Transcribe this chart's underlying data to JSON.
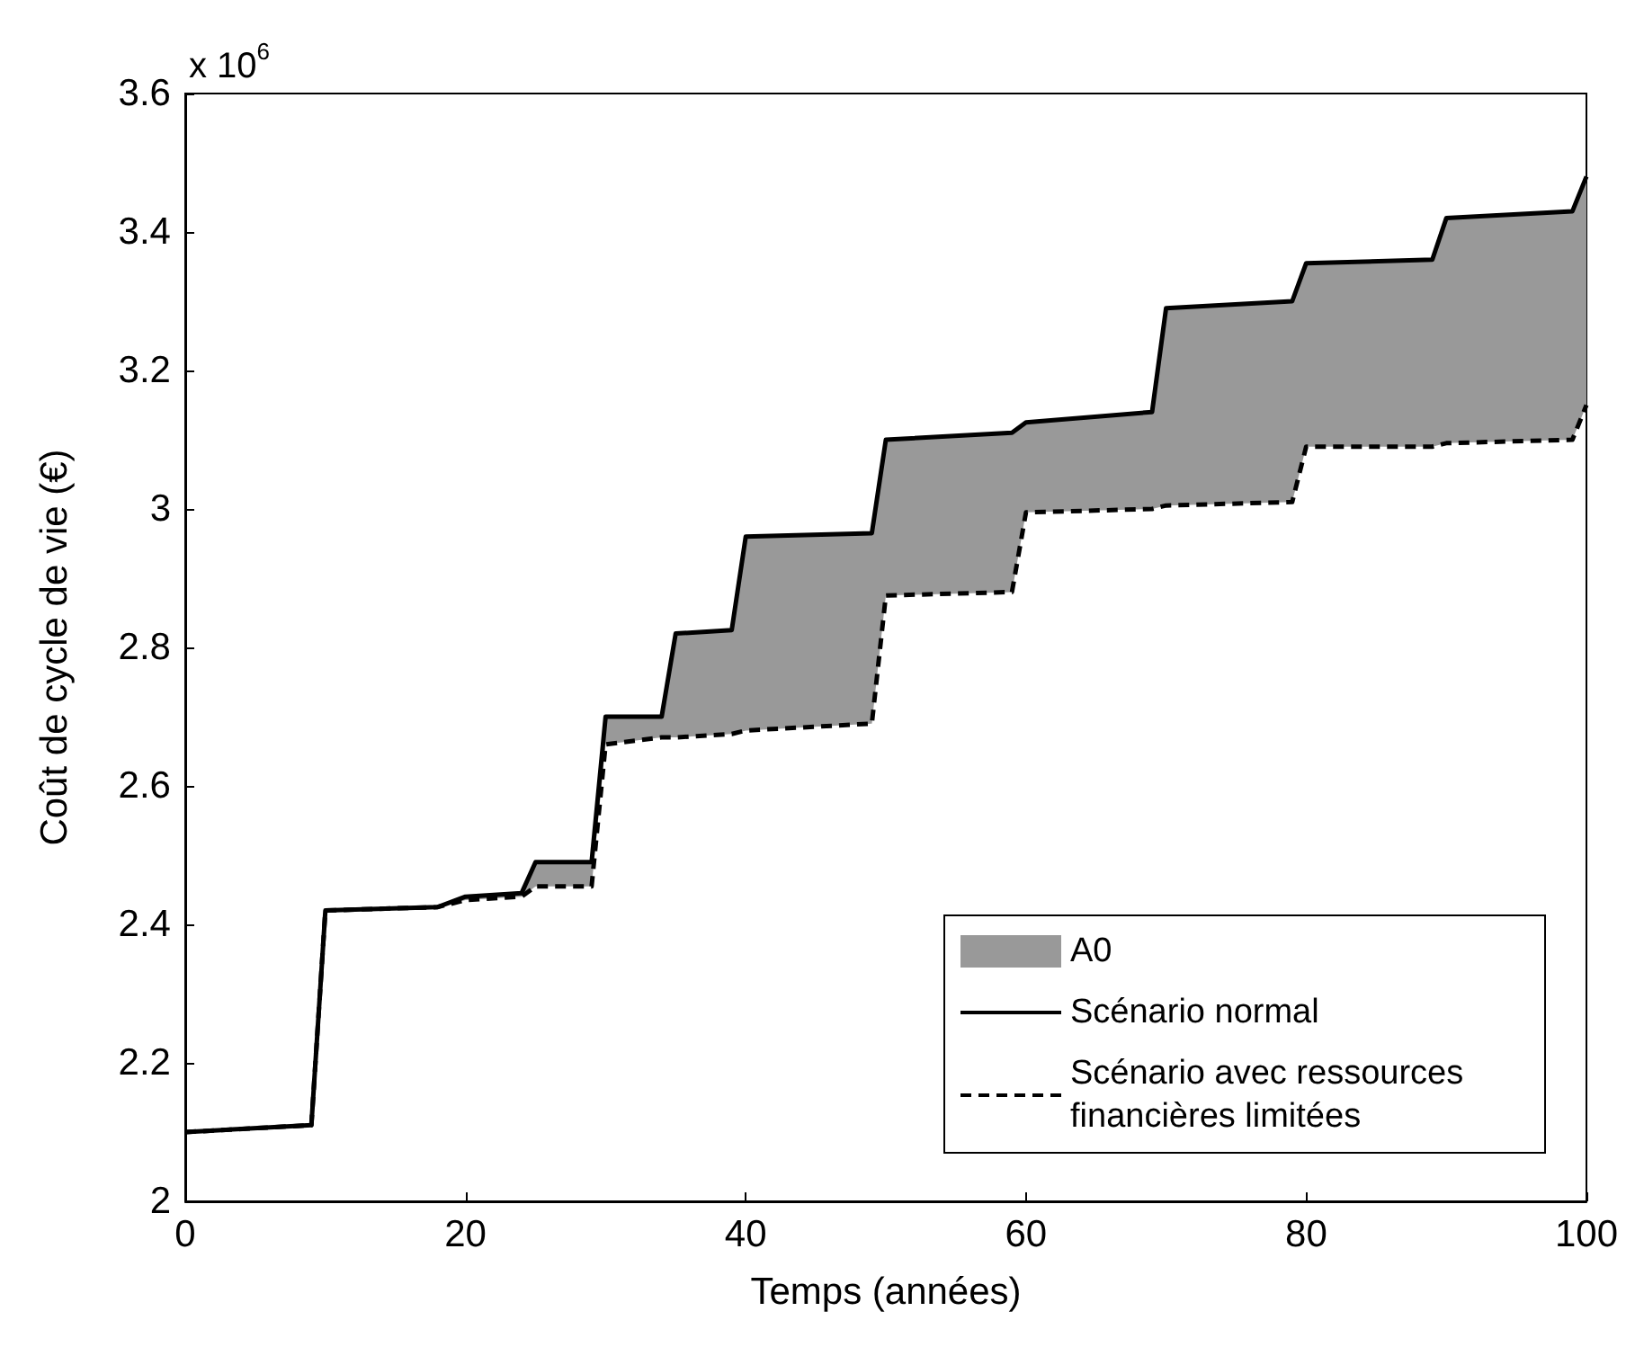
{
  "chart_data": {
    "type": "line",
    "xlabel": "Temps (années)",
    "ylabel": "Coût de cycle de vie (€)",
    "annotations": [
      "x 10$^{6}$"
    ],
    "x": [
      0,
      9,
      10,
      18,
      20,
      24,
      25,
      29,
      30,
      34,
      35,
      39,
      40,
      49,
      50,
      59,
      60,
      69,
      70,
      79,
      80,
      89,
      90,
      99,
      100
    ],
    "series": [
      {
        "name": "Scénario normal",
        "color": "#000000",
        "line_style": "solid",
        "values": [
          2.1,
          2.11,
          2.42,
          2.425,
          2.44,
          2.445,
          2.49,
          2.49,
          2.7,
          2.7,
          2.82,
          2.825,
          2.96,
          2.965,
          3.1,
          3.11,
          3.125,
          3.14,
          3.29,
          3.3,
          3.355,
          3.36,
          3.42,
          3.43,
          3.48
        ]
      },
      {
        "name": "Scénario avec ressources financières limitées",
        "color": "#000000",
        "line_style": "dashed",
        "values": [
          2.1,
          2.11,
          2.42,
          2.425,
          2.435,
          2.44,
          2.455,
          2.455,
          2.66,
          2.67,
          2.67,
          2.675,
          2.68,
          2.69,
          2.875,
          2.88,
          2.995,
          3.0,
          3.005,
          3.01,
          3.09,
          3.09,
          3.095,
          3.1,
          3.15
        ]
      },
      {
        "name": "A0",
        "type": "area",
        "color": "#999999",
        "values": [
          null,
          null,
          null,
          null,
          null,
          null,
          null,
          null,
          null,
          null,
          null,
          null,
          null,
          null,
          null,
          null,
          null,
          null,
          null,
          null,
          null,
          null,
          null,
          null,
          null
        ],
        "upper": [
          2.1,
          2.11,
          2.42,
          2.425,
          2.44,
          2.445,
          2.49,
          2.49,
          2.7,
          2.7,
          2.82,
          2.825,
          2.96,
          2.965,
          3.1,
          3.11,
          3.125,
          3.14,
          3.29,
          3.3,
          3.355,
          3.36,
          3.42,
          3.43,
          3.48
        ],
        "lower": [
          2.1,
          2.11,
          2.42,
          2.425,
          2.435,
          2.44,
          2.455,
          2.455,
          2.66,
          2.67,
          2.67,
          2.675,
          2.68,
          2.69,
          2.875,
          2.88,
          2.995,
          3.0,
          3.005,
          3.01,
          3.09,
          3.09,
          3.095,
          3.1,
          3.15
        ]
      }
    ],
    "xlim": [
      0,
      100
    ],
    "xticks": [
      0,
      20,
      40,
      60,
      80,
      100
    ],
    "ylim": [
      2,
      3.6
    ],
    "yticks": [
      2,
      2.2,
      2.4,
      2.6,
      2.8,
      3,
      3.2,
      3.4,
      3.6
    ],
    "grid": false,
    "legend": "bottom right",
    "marker": "none"
  }
}
